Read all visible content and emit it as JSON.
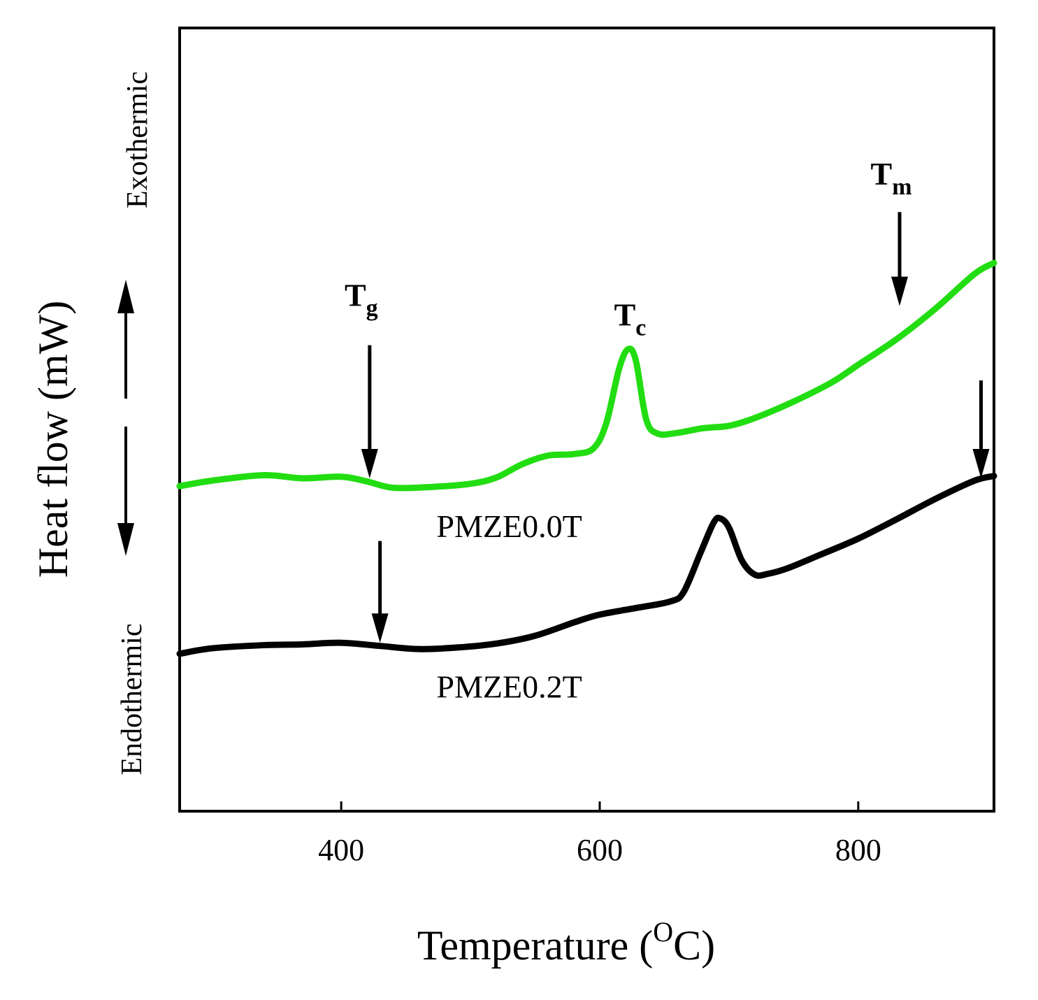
{
  "chart_data": {
    "type": "line",
    "xlabel": "Temperature (",
    "xlabel_sup": "O",
    "xlabel_tail": "C)",
    "ylabel": "Heat flow (mW)",
    "exo_label": "Exothermic",
    "endo_label": "Endothermic",
    "xlim": [
      275,
      905
    ],
    "ylim": [
      0,
      100
    ],
    "x_ticks": [
      400,
      600,
      800
    ],
    "x_tick_labels": [
      "400",
      "600",
      "800"
    ],
    "grid": false,
    "series": [
      {
        "name": "PMZE0.0T",
        "color": "#22dd11",
        "points": [
          [
            275,
            41.5
          ],
          [
            300,
            42.2
          ],
          [
            340,
            42.9
          ],
          [
            370,
            42.5
          ],
          [
            400,
            42.7
          ],
          [
            420,
            42.1
          ],
          [
            440,
            41.3
          ],
          [
            470,
            41.4
          ],
          [
            500,
            41.8
          ],
          [
            520,
            42.6
          ],
          [
            540,
            44.3
          ],
          [
            560,
            45.4
          ],
          [
            580,
            45.6
          ],
          [
            595,
            46.3
          ],
          [
            605,
            49.5
          ],
          [
            615,
            56.5
          ],
          [
            622,
            59.0
          ],
          [
            628,
            57.5
          ],
          [
            636,
            50.0
          ],
          [
            645,
            48.2
          ],
          [
            660,
            48.3
          ],
          [
            680,
            48.9
          ],
          [
            700,
            49.2
          ],
          [
            720,
            50.2
          ],
          [
            750,
            52.3
          ],
          [
            780,
            54.8
          ],
          [
            800,
            57.0
          ],
          [
            830,
            60.3
          ],
          [
            860,
            64.2
          ],
          [
            890,
            68.6
          ],
          [
            905,
            70.0
          ]
        ]
      },
      {
        "name": "PMZE0.2T",
        "color": "#000000",
        "points": [
          [
            275,
            20.1
          ],
          [
            300,
            20.8
          ],
          [
            340,
            21.2
          ],
          [
            370,
            21.3
          ],
          [
            400,
            21.5
          ],
          [
            430,
            21.1
          ],
          [
            460,
            20.7
          ],
          [
            490,
            20.9
          ],
          [
            520,
            21.4
          ],
          [
            550,
            22.4
          ],
          [
            580,
            24.1
          ],
          [
            600,
            25.1
          ],
          [
            630,
            26.0
          ],
          [
            655,
            26.8
          ],
          [
            665,
            28.0
          ],
          [
            678,
            33.0
          ],
          [
            688,
            36.8
          ],
          [
            693,
            37.4
          ],
          [
            700,
            36.2
          ],
          [
            710,
            32.0
          ],
          [
            720,
            30.2
          ],
          [
            730,
            30.3
          ],
          [
            745,
            31.0
          ],
          [
            770,
            32.7
          ],
          [
            800,
            34.8
          ],
          [
            830,
            37.3
          ],
          [
            860,
            39.9
          ],
          [
            890,
            42.2
          ],
          [
            905,
            42.8
          ]
        ]
      }
    ],
    "annotations": [
      {
        "text": "T",
        "sub": "g",
        "series": 0,
        "x": 422,
        "label_y": 64.5,
        "arrow_top_y": 59.5,
        "arrow_tip_y": 42.5
      },
      {
        "text": "T",
        "sub": "c",
        "series": 0,
        "x": 630,
        "label_y": 62.0
      },
      {
        "text": "T",
        "sub": "m",
        "series": 0,
        "x": 832,
        "label_y": 80.0,
        "arrow_top_y": 76.5,
        "arrow_tip_y": 64.5
      },
      {
        "text": "",
        "series": 1,
        "x": 430,
        "arrow_top_y": 34.5,
        "arrow_tip_y": 21.5
      },
      {
        "text": "",
        "series": 1,
        "x": 895,
        "arrow_top_y": 55.0,
        "arrow_tip_y": 42.5
      }
    ],
    "series_labels": [
      {
        "name": "PMZE0.0T",
        "x": 530,
        "y": 35.0
      },
      {
        "name": "PMZE0.2T",
        "x": 530,
        "y": 14.5
      }
    ]
  }
}
